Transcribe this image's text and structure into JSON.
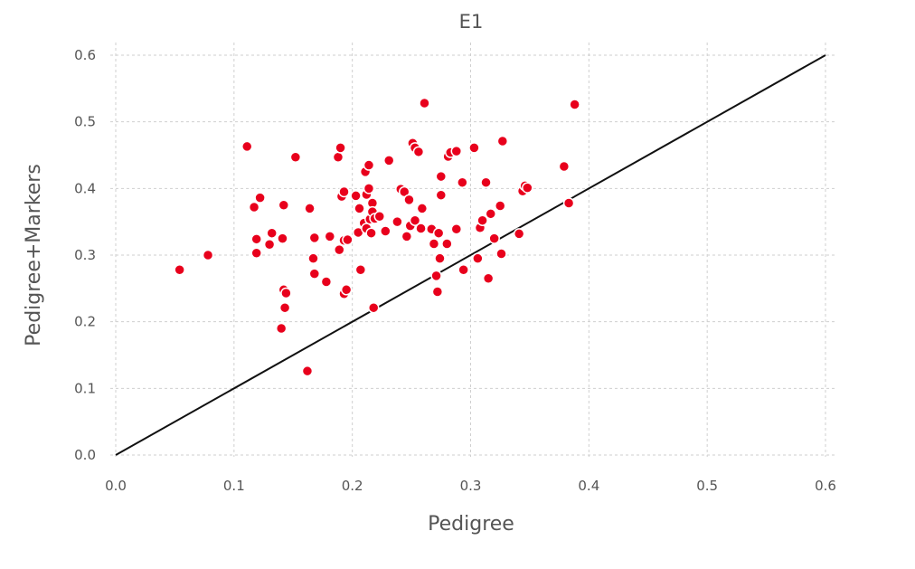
{
  "chart_data": {
    "type": "scatter",
    "title": "E1",
    "xlabel": "Pedigree",
    "ylabel": "Pedigree+Markers",
    "xlim": [
      0.0,
      0.6
    ],
    "ylim": [
      0.0,
      0.6
    ],
    "xticks": [
      "0.0",
      "0.1",
      "0.2",
      "0.3",
      "0.4",
      "0.5",
      "0.6"
    ],
    "yticks": [
      "0.0",
      "0.1",
      "0.2",
      "0.3",
      "0.4",
      "0.5",
      "0.6"
    ],
    "grid": true,
    "legend": "none",
    "point_color": "#e8001c",
    "line_color": "#111111",
    "reference_line": {
      "x": [
        0.0,
        0.6
      ],
      "y": [
        0.0,
        0.6
      ]
    },
    "points": [
      [
        0.054,
        0.278
      ],
      [
        0.078,
        0.3
      ],
      [
        0.111,
        0.463
      ],
      [
        0.117,
        0.372
      ],
      [
        0.119,
        0.324
      ],
      [
        0.119,
        0.303
      ],
      [
        0.122,
        0.386
      ],
      [
        0.13,
        0.316
      ],
      [
        0.132,
        0.333
      ],
      [
        0.14,
        0.19
      ],
      [
        0.141,
        0.325
      ],
      [
        0.142,
        0.375
      ],
      [
        0.142,
        0.248
      ],
      [
        0.143,
        0.221
      ],
      [
        0.144,
        0.243
      ],
      [
        0.152,
        0.447
      ],
      [
        0.162,
        0.126
      ],
      [
        0.164,
        0.37
      ],
      [
        0.167,
        0.295
      ],
      [
        0.168,
        0.326
      ],
      [
        0.168,
        0.272
      ],
      [
        0.178,
        0.26
      ],
      [
        0.181,
        0.328
      ],
      [
        0.188,
        0.447
      ],
      [
        0.189,
        0.308
      ],
      [
        0.19,
        0.461
      ],
      [
        0.191,
        0.388
      ],
      [
        0.193,
        0.395
      ],
      [
        0.193,
        0.322
      ],
      [
        0.193,
        0.242
      ],
      [
        0.195,
        0.248
      ],
      [
        0.196,
        0.323
      ],
      [
        0.203,
        0.389
      ],
      [
        0.205,
        0.334
      ],
      [
        0.206,
        0.37
      ],
      [
        0.207,
        0.278
      ],
      [
        0.21,
        0.348
      ],
      [
        0.211,
        0.425
      ],
      [
        0.212,
        0.34
      ],
      [
        0.212,
        0.391
      ],
      [
        0.214,
        0.435
      ],
      [
        0.214,
        0.4
      ],
      [
        0.215,
        0.354
      ],
      [
        0.216,
        0.333
      ],
      [
        0.217,
        0.378
      ],
      [
        0.217,
        0.365
      ],
      [
        0.218,
        0.221
      ],
      [
        0.219,
        0.355
      ],
      [
        0.223,
        0.358
      ],
      [
        0.228,
        0.336
      ],
      [
        0.231,
        0.442
      ],
      [
        0.238,
        0.35
      ],
      [
        0.241,
        0.399
      ],
      [
        0.244,
        0.395
      ],
      [
        0.246,
        0.328
      ],
      [
        0.248,
        0.383
      ],
      [
        0.249,
        0.344
      ],
      [
        0.251,
        0.468
      ],
      [
        0.253,
        0.461
      ],
      [
        0.253,
        0.352
      ],
      [
        0.256,
        0.455
      ],
      [
        0.258,
        0.34
      ],
      [
        0.259,
        0.37
      ],
      [
        0.261,
        0.528
      ],
      [
        0.267,
        0.339
      ],
      [
        0.269,
        0.317
      ],
      [
        0.271,
        0.269
      ],
      [
        0.272,
        0.245
      ],
      [
        0.273,
        0.333
      ],
      [
        0.274,
        0.295
      ],
      [
        0.275,
        0.39
      ],
      [
        0.275,
        0.418
      ],
      [
        0.28,
        0.317
      ],
      [
        0.281,
        0.448
      ],
      [
        0.283,
        0.454
      ],
      [
        0.288,
        0.456
      ],
      [
        0.288,
        0.339
      ],
      [
        0.293,
        0.409
      ],
      [
        0.294,
        0.278
      ],
      [
        0.303,
        0.461
      ],
      [
        0.306,
        0.295
      ],
      [
        0.308,
        0.341
      ],
      [
        0.31,
        0.352
      ],
      [
        0.313,
        0.409
      ],
      [
        0.315,
        0.265
      ],
      [
        0.317,
        0.362
      ],
      [
        0.32,
        0.325
      ],
      [
        0.325,
        0.374
      ],
      [
        0.326,
        0.302
      ],
      [
        0.327,
        0.471
      ],
      [
        0.341,
        0.332
      ],
      [
        0.344,
        0.396
      ],
      [
        0.346,
        0.404
      ],
      [
        0.348,
        0.401
      ],
      [
        0.379,
        0.433
      ],
      [
        0.383,
        0.378
      ],
      [
        0.388,
        0.526
      ]
    ]
  }
}
